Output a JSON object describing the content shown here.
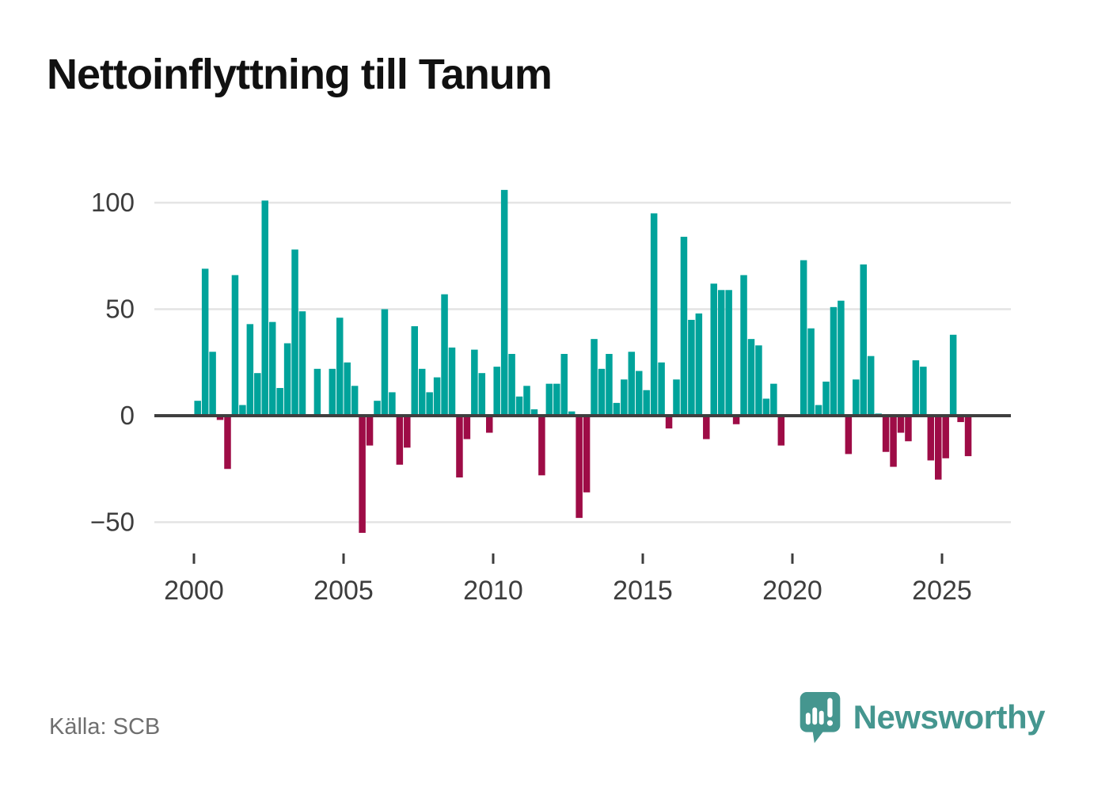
{
  "header": {
    "title": "Nettoinflyttning till Tanum"
  },
  "footer": {
    "source_label": "Källa: SCB",
    "brand": {
      "name": "Newsworthy",
      "icon": "newsworthy-speech-bubble-bar-chart-icon"
    }
  },
  "colors": {
    "positive": "#00a39b",
    "negative": "#9e0c46",
    "grid": "#e4e4e4",
    "zero_axis": "#3f3f3f",
    "axis_text": "#3d3d3d",
    "title_text": "#111111",
    "source_text": "#6f6f6f",
    "brand_teal": "#45968f",
    "background": "#ffffff"
  },
  "chart_data": {
    "type": "bar",
    "title": "Nettoinflyttning till Tanum",
    "xlabel": "",
    "ylabel": "",
    "unit": "net in-migration per quarter (persons)",
    "grid": "horizontal",
    "legend": "none",
    "ylim": [
      -60,
      110
    ],
    "x_start": "2000Q1",
    "x_end": "2025Q4",
    "yticks": [
      {
        "value": 100,
        "label": "100"
      },
      {
        "value": 50,
        "label": "50"
      },
      {
        "value": 0,
        "label": "0"
      },
      {
        "value": -50,
        "label": "−50"
      }
    ],
    "xticks": [
      {
        "year": 2000,
        "label": "2000"
      },
      {
        "year": 2005,
        "label": "2005"
      },
      {
        "year": 2010,
        "label": "2010"
      },
      {
        "year": 2015,
        "label": "2015"
      },
      {
        "year": 2020,
        "label": "2020"
      },
      {
        "year": 2025,
        "label": "2025"
      }
    ],
    "quarters": [
      "2000Q1",
      "2000Q2",
      "2000Q3",
      "2000Q4",
      "2001Q1",
      "2001Q2",
      "2001Q3",
      "2001Q4",
      "2002Q1",
      "2002Q2",
      "2002Q3",
      "2002Q4",
      "2003Q1",
      "2003Q2",
      "2003Q3",
      "2003Q4",
      "2004Q1",
      "2004Q2",
      "2004Q3",
      "2004Q4",
      "2005Q1",
      "2005Q2",
      "2005Q3",
      "2005Q4",
      "2006Q1",
      "2006Q2",
      "2006Q3",
      "2006Q4",
      "2007Q1",
      "2007Q2",
      "2007Q3",
      "2007Q4",
      "2008Q1",
      "2008Q2",
      "2008Q3",
      "2008Q4",
      "2009Q1",
      "2009Q2",
      "2009Q3",
      "2009Q4",
      "2010Q1",
      "2010Q2",
      "2010Q3",
      "2010Q4",
      "2011Q1",
      "2011Q2",
      "2011Q3",
      "2011Q4",
      "2012Q1",
      "2012Q2",
      "2012Q3",
      "2012Q4",
      "2013Q1",
      "2013Q2",
      "2013Q3",
      "2013Q4",
      "2014Q1",
      "2014Q2",
      "2014Q3",
      "2014Q4",
      "2015Q1",
      "2015Q2",
      "2015Q3",
      "2015Q4",
      "2016Q1",
      "2016Q2",
      "2016Q3",
      "2016Q4",
      "2017Q1",
      "2017Q2",
      "2017Q3",
      "2017Q4",
      "2018Q1",
      "2018Q2",
      "2018Q3",
      "2018Q4",
      "2019Q1",
      "2019Q2",
      "2019Q3",
      "2019Q4",
      "2020Q1",
      "2020Q2",
      "2020Q3",
      "2020Q4",
      "2021Q1",
      "2021Q2",
      "2021Q3",
      "2021Q4",
      "2022Q1",
      "2022Q2",
      "2022Q3",
      "2022Q4",
      "2023Q1",
      "2023Q2",
      "2023Q3",
      "2023Q4",
      "2024Q1",
      "2024Q2",
      "2024Q3",
      "2024Q4",
      "2025Q1",
      "2025Q2",
      "2025Q3",
      "2025Q4"
    ],
    "values": [
      7,
      69,
      30,
      -2,
      -25,
      66,
      5,
      43,
      20,
      101,
      44,
      13,
      34,
      78,
      49,
      0,
      22,
      0,
      22,
      46,
      25,
      14,
      -55,
      -14,
      7,
      50,
      11,
      -23,
      -15,
      42,
      22,
      11,
      18,
      57,
      32,
      -29,
      -11,
      31,
      20,
      -8,
      23,
      106,
      29,
      9,
      14,
      3,
      -28,
      15,
      15,
      29,
      2,
      -48,
      -36,
      36,
      22,
      29,
      6,
      17,
      30,
      21,
      12,
      95,
      25,
      -6,
      17,
      84,
      45,
      48,
      -11,
      62,
      59,
      59,
      -4,
      66,
      36,
      33,
      8,
      15,
      -14,
      0,
      0,
      73,
      41,
      5,
      16,
      51,
      54,
      -18,
      17,
      71,
      28,
      1,
      -17,
      -24,
      -8,
      -12,
      26,
      23,
      -21,
      -30,
      -20,
      38,
      -3,
      -19
    ]
  }
}
